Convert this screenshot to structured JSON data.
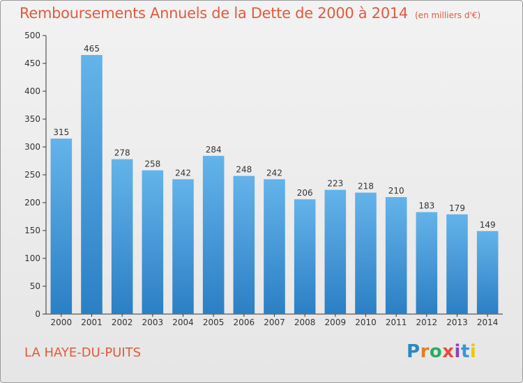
{
  "header": {
    "title": "Remboursements Annuels de la Dette de 2000 à 2014",
    "unit": "(en milliers d'€)"
  },
  "footer": {
    "commune": "LA HAYE-DU-PUITS",
    "logo_text": "Proxiti",
    "logo_colors": [
      "#2e86c1",
      "#e67e22",
      "#27ae60",
      "#e74c3c",
      "#8e44ad",
      "#3498db",
      "#f1c40f"
    ]
  },
  "chart_data": {
    "type": "bar",
    "title": "Remboursements Annuels de la Dette de 2000 à 2014",
    "xlabel": "",
    "ylabel": "",
    "categories": [
      "2000",
      "2001",
      "2002",
      "2003",
      "2004",
      "2005",
      "2006",
      "2007",
      "2008",
      "2009",
      "2010",
      "2011",
      "2012",
      "2013",
      "2014"
    ],
    "values": [
      315,
      465,
      278,
      258,
      242,
      284,
      248,
      242,
      206,
      223,
      218,
      210,
      183,
      179,
      149
    ],
    "ylim": [
      0,
      500
    ],
    "yticks": [
      0,
      50,
      100,
      150,
      200,
      250,
      300,
      350,
      400,
      450,
      500
    ],
    "grid": false,
    "bar_color_top": "#64b3ea",
    "bar_color_bottom": "#2b7fc4"
  }
}
